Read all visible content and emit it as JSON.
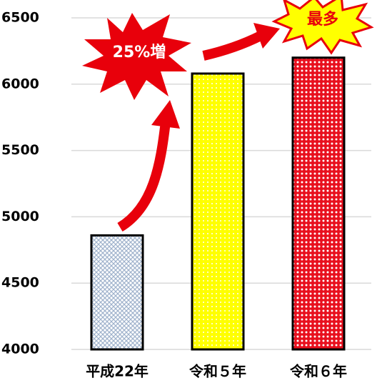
{
  "chart_data": {
    "type": "bar",
    "categories": [
      "平成22年",
      "令和５年",
      "令和６年"
    ],
    "values": [
      4860,
      6080,
      6200
    ],
    "colors": [
      "#9fb2cc",
      "#ffff00",
      "#e8101e"
    ],
    "ylim": [
      4000,
      6500
    ],
    "yticks": [
      4000,
      4500,
      5000,
      5500,
      6000,
      6500
    ],
    "grid": true,
    "annotations": [
      "25%増",
      "最多"
    ]
  }
}
